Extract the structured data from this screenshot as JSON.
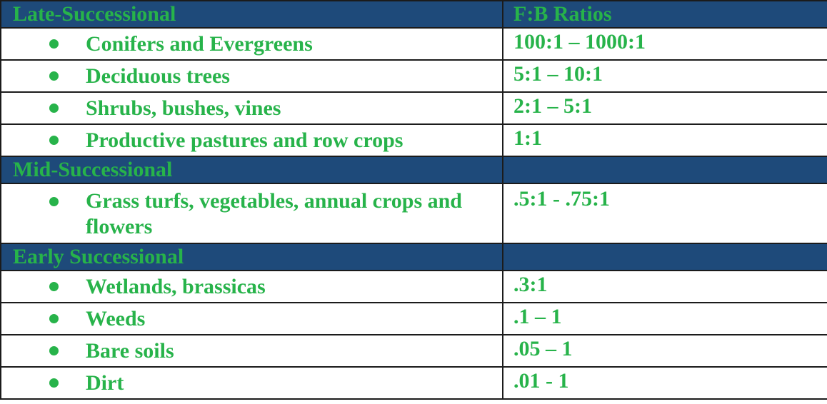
{
  "table": {
    "header": {
      "left": "Late-Successional",
      "right": "F:B Ratios"
    },
    "late_rows": [
      {
        "label": "Conifers and Evergreens",
        "ratio": "100:1 – 1000:1"
      },
      {
        "label": "Deciduous trees",
        "ratio": "5:1 – 10:1"
      },
      {
        "label": "Shrubs, bushes, vines",
        "ratio": "2:1 – 5:1"
      },
      {
        "label": "Productive pastures and row crops",
        "ratio": "1:1"
      }
    ],
    "mid_header": "Mid-Successional",
    "mid_rows": [
      {
        "label": "Grass turfs, vegetables, annual crops and flowers",
        "ratio": ".5:1 - .75:1"
      }
    ],
    "early_header": "Early Successional",
    "early_rows": [
      {
        "label": "Wetlands, brassicas",
        "ratio": ".3:1"
      },
      {
        "label": "Weeds",
        "ratio": ".1 – 1"
      },
      {
        "label": "Bare soils",
        "ratio": ".05 – 1"
      },
      {
        "label": "Dirt",
        "ratio": ".01 - 1"
      }
    ]
  },
  "colors": {
    "text": "#27b34a",
    "header_bg": "#1e4a7a",
    "border": "#1b1b1b"
  }
}
